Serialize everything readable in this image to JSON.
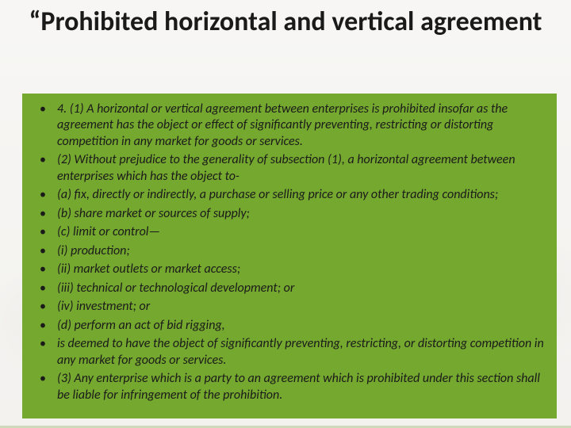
{
  "slide": {
    "title": "“Prohibited horizontal and vertical agreement",
    "title_fontsize": 34,
    "title_color": "#1a1a1a",
    "background_color": "#f7f6f4",
    "content_box": {
      "background_color": "#75a82e",
      "text_color": "#1a1a1a",
      "bullet_fontsize": 16,
      "line_height": 1.28,
      "items": [
        "4. (1) A horizontal or vertical agreement between enterprises is prohibited insofar as the agreement has the object or effect of significantly preventing, restricting or distorting competition in any market for goods or services.",
        "(2) Without prejudice to the generality of subsection (1), a horizontal agreement between enterprises which has the object to-",
        "(a) fix, directly or indirectly, a purchase or selling price or any other trading conditions;",
        "(b) share market or sources of supply;",
        "(c) limit or control—",
        "(i) production;",
        "(ii) market outlets or market access;",
        "(iii) technical or technological development; or",
        "(iv) investment; or",
        "(d) perform an act of bid rigging,",
        "is deemed to have the object of significantly preventing, restricting, or distorting competition in any market for goods or services.",
        "(3) Any enterprise which is a party to an agreement which is prohibited under this section shall be liable for infringement of the prohibition."
      ]
    }
  }
}
